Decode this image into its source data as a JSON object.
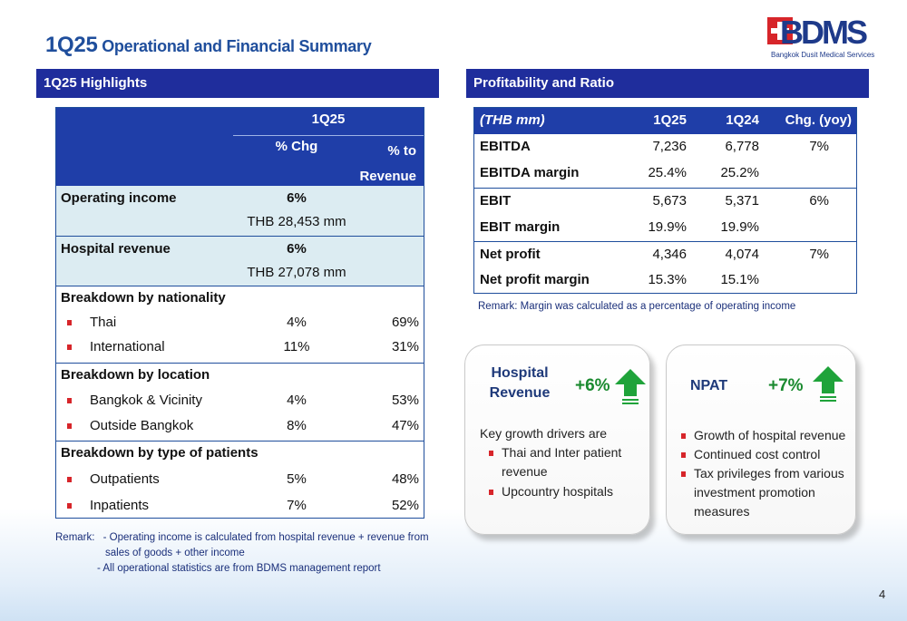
{
  "title": {
    "prefix": "1Q25",
    "text": "Operational and Financial Summary"
  },
  "logo": {
    "word": "BDMS",
    "subtitle": "Bangkok Dusit Medical Services"
  },
  "highlights": {
    "header": "1Q25 Highlights",
    "col_group": "1Q25",
    "col_chg": "% Chg",
    "col_rev_1": "% to",
    "col_rev_2": "Revenue",
    "operating_income": {
      "label": "Operating income",
      "chg": "6%",
      "amount": "THB 28,453 mm"
    },
    "hospital_revenue": {
      "label": "Hospital revenue",
      "chg": "6%",
      "amount": "THB 27,078 mm"
    },
    "nationality": {
      "label": "Breakdown by nationality",
      "items": [
        {
          "name": "Thai",
          "chg": "4%",
          "rev": "69%"
        },
        {
          "name": "International",
          "chg": "11%",
          "rev": "31%"
        }
      ]
    },
    "location": {
      "label": "Breakdown by location",
      "items": [
        {
          "name": "Bangkok & Vicinity",
          "chg": "4%",
          "rev": "53%"
        },
        {
          "name": "Outside Bangkok",
          "chg": "8%",
          "rev": "47%"
        }
      ]
    },
    "patients": {
      "label": "Breakdown by type of patients",
      "items": [
        {
          "name": "Outpatients",
          "chg": "5%",
          "rev": "48%"
        },
        {
          "name": "Inpatients",
          "chg": "7%",
          "rev": "52%"
        }
      ]
    },
    "remark_label": "Remark:",
    "remark_1a": "- Operating income is calculated from hospital revenue + revenue from",
    "remark_1b": "sales of goods + other income",
    "remark_2": "- All operational statistics are from BDMS management report"
  },
  "profitability": {
    "header": "Profitability and Ratio",
    "columns": [
      "(THB mm)",
      "1Q25",
      "1Q24",
      "Chg. (yoy)"
    ],
    "rows": [
      {
        "label": "EBITDA",
        "q125": "7,236",
        "q124": "6,778",
        "chg": "7%"
      },
      {
        "label": "EBITDA margin",
        "q125": "25.4%",
        "q124": "25.2%",
        "chg": ""
      },
      {
        "label": "EBIT",
        "q125": "5,673",
        "q124": "5,371",
        "chg": "6%"
      },
      {
        "label": "EBIT margin",
        "q125": "19.9%",
        "q124": "19.9%",
        "chg": ""
      },
      {
        "label": "Net profit",
        "q125": "4,346",
        "q124": "4,074",
        "chg": "7%"
      },
      {
        "label": "Net profit margin",
        "q125": "15.3%",
        "q124": "15.1%",
        "chg": ""
      }
    ],
    "remark": "Remark:  Margin was calculated as a percentage of operating income"
  },
  "cards": {
    "hospital_revenue": {
      "title_1": "Hospital",
      "title_2": "Revenue",
      "change": "+6%",
      "intro": "Key growth drivers are",
      "bullet_1a": "Thai and Inter patient",
      "bullet_1b": "revenue",
      "bullet_2": "Upcountry hospitals"
    },
    "npat": {
      "title": "NPAT",
      "change": "+7%",
      "bullet_1": "Growth of hospital revenue",
      "bullet_2": "Continued cost control",
      "bullet_3a": "Tax privileges from various",
      "bullet_3b": "investment promotion",
      "bullet_3c": "measures"
    }
  },
  "colors": {
    "navy": "#1f2d9c",
    "header_blue": "#1f3ea8",
    "title_blue": "#1f4e9c",
    "accent_red": "#d7252a",
    "growth_green": "#1a8a2f",
    "shade": "#dcecf2"
  },
  "page_number": "4"
}
